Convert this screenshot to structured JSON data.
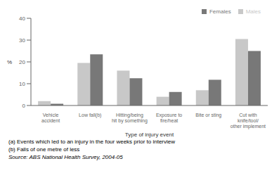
{
  "chart_data": {
    "type": "bar",
    "categories": [
      "Vehicle\naccident",
      "Low fall(b)",
      "Hitting/being\nhit by something",
      "Exposure to\nfire/heat",
      "Bite or sting",
      "Cut with\nknife/tool/\nother implement"
    ],
    "series": [
      {
        "name": "Males",
        "color": "#c8c8c8",
        "values": [
          2.0,
          19.5,
          16.0,
          4.0,
          7.0,
          30.5
        ]
      },
      {
        "name": "Females",
        "color": "#787878",
        "values": [
          0.8,
          23.5,
          12.5,
          6.2,
          11.8,
          25.0
        ]
      }
    ],
    "xlabel": "Type of injury event",
    "ylabel": "%",
    "ylim": [
      0,
      40
    ],
    "yticks": [
      0,
      10,
      20,
      30,
      40
    ],
    "grid": false,
    "legend": "upper right",
    "annotations": [
      "(a) Events which led to an injury in the four weeks prior to interview",
      "(b) Falls of one metre of less",
      "Source: ABS National Health Survey, 2004-05"
    ]
  }
}
